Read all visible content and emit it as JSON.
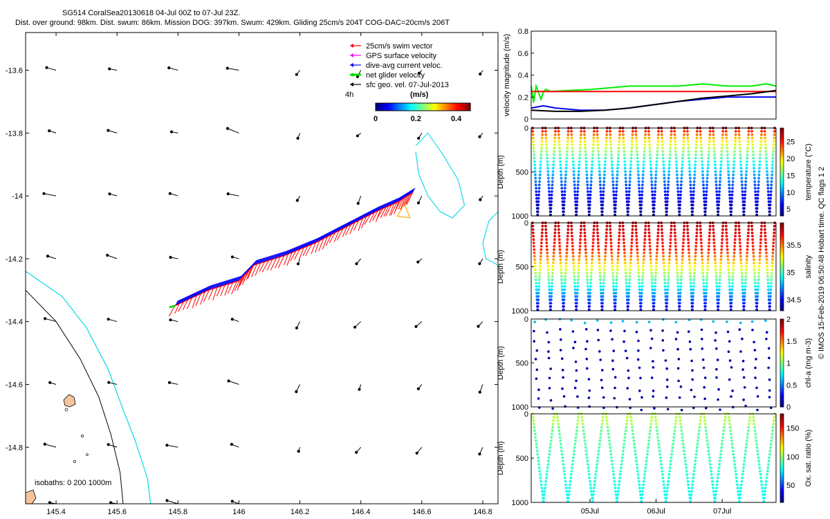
{
  "header": {
    "line1": "SG514 CoralSea20130618 04-Jul 00Z to 07-Jul 23Z.",
    "line2": "Dist. over ground: 98km. Dist. swum: 86km. Mission DOG: 397km. Swum: 429km. Gliding 25cm/s 204T COG-DAC=20cm/s 206T"
  },
  "footer_credit": "© IMOS 15-Feb-2019 06:50:48 Hobart time. QC flags 1  2",
  "colors": {
    "swim": "#ff0000",
    "gps": "#ff00ff",
    "dac": "#0000ff",
    "net": "#00dd00",
    "geo": "#000000",
    "isobath_200": "#00d8e8",
    "isobath_1000": "#000000",
    "land": "#f4c49c"
  },
  "chart_data": [
    {
      "type": "scatter",
      "kind": "map",
      "xlim": [
        145.3,
        146.85
      ],
      "ylim": [
        -14.98,
        -13.48
      ],
      "xticks": [
        145.4,
        145.6,
        145.8,
        146,
        146.2,
        146.4,
        146.6,
        146.8
      ],
      "xtick_labels": [
        "145.4",
        "145.6",
        "145.8",
        "146",
        "146.2",
        "146.4",
        "146.6",
        "146.8"
      ],
      "yticks": [
        -13.6,
        -13.8,
        -14,
        -14.2,
        -14.4,
        -14.6,
        -14.8
      ],
      "ytick_labels": [
        "-13.6",
        "-13.8",
        "-14",
        "-14.2",
        "-14.4",
        "-14.6",
        "-14.8"
      ],
      "legend": {
        "position": "top-right",
        "entries": [
          "25cm/s swim vector",
          "GPS surface velocity",
          "dive-avg current veloc.",
          "net glider velocity",
          "sfc geo. vel. 07-Jul-2013"
        ]
      },
      "time_step_label": "4h",
      "colorbar": {
        "title": "(m/s)",
        "ticks": [
          0,
          0.2,
          0.4
        ],
        "range": [
          0,
          0.47
        ],
        "tick_labels": [
          "0",
          "0.2",
          "0.4"
        ]
      },
      "isobaths_label": "isobaths: 0   200  1000m",
      "track": {
        "start": [
          145.79,
          -14.35
        ],
        "end": [
          146.57,
          -13.99
        ],
        "points": [
          [
            145.79,
            -14.35
          ],
          [
            145.9,
            -14.3
          ],
          [
            146.0,
            -14.27
          ],
          [
            146.05,
            -14.22
          ],
          [
            146.15,
            -14.19
          ],
          [
            146.25,
            -14.15
          ],
          [
            146.35,
            -14.1
          ],
          [
            146.45,
            -14.05
          ],
          [
            146.52,
            -14.02
          ],
          [
            146.57,
            -13.99
          ]
        ]
      },
      "geo_vectors": {
        "lons": [
          145.4,
          145.6,
          145.8,
          146.0,
          146.2,
          146.4,
          146.6,
          146.8
        ],
        "lats": [
          -13.6,
          -13.8,
          -14.0,
          -14.2,
          -14.4,
          -14.6,
          -14.8,
          -14.98
        ]
      }
    },
    {
      "type": "line",
      "ylabel": "velocity magnitude (m/s)",
      "ylim": [
        0,
        0.8
      ],
      "yticks": [
        0,
        0.2,
        0.4,
        0.6,
        0.8
      ],
      "ytick_labels": [
        "0",
        "0.2",
        "0.4",
        "0.6",
        "0.8"
      ],
      "xlim": [
        0,
        1
      ],
      "series": [
        {
          "color": "#00ee00",
          "x": [
            0,
            0.01,
            0.02,
            0.04,
            0.05,
            0.06,
            0.08,
            0.15,
            0.25,
            0.4,
            0.5,
            0.6,
            0.7,
            0.8,
            0.9,
            0.96,
            1.0
          ],
          "y": [
            0.3,
            0.15,
            0.3,
            0.18,
            0.25,
            0.27,
            0.25,
            0.26,
            0.27,
            0.3,
            0.3,
            0.3,
            0.32,
            0.3,
            0.3,
            0.32,
            0.3
          ]
        },
        {
          "color": "#ff0000",
          "x": [
            0,
            1
          ],
          "y": [
            0.25,
            0.25
          ]
        },
        {
          "color": "#0000ee",
          "x": [
            0,
            0.05,
            0.1,
            0.2,
            0.3,
            0.4,
            0.5,
            0.6,
            0.7,
            0.8,
            0.9,
            1.0
          ],
          "y": [
            0.1,
            0.12,
            0.1,
            0.08,
            0.08,
            0.1,
            0.13,
            0.16,
            0.18,
            0.2,
            0.2,
            0.2
          ]
        },
        {
          "color": "#000000",
          "x": [
            0,
            0.1,
            0.2,
            0.3,
            0.4,
            0.5,
            0.6,
            0.7,
            0.8,
            0.9,
            1.0
          ],
          "y": [
            0.08,
            0.07,
            0.07,
            0.08,
            0.1,
            0.13,
            0.16,
            0.19,
            0.21,
            0.23,
            0.26
          ]
        }
      ]
    },
    {
      "type": "scatter",
      "ylabel": "Depth (m)",
      "ylim": [
        1000,
        0
      ],
      "yticks": [
        0,
        500,
        1000
      ],
      "ytick_labels": [
        "0",
        "500",
        "1000"
      ],
      "cbar_label": "temperature (°C)",
      "cbar_ticks": [
        5,
        10,
        15,
        20,
        25
      ],
      "cbar_tick_labels": [
        "5",
        "10",
        "15",
        "20",
        "25"
      ],
      "cbar_range": [
        3,
        29
      ],
      "variable": "temperature",
      "dive_count": 19
    },
    {
      "type": "scatter",
      "ylabel": "Depth (m)",
      "ylim": [
        1000,
        0
      ],
      "yticks": [
        0,
        500,
        1000
      ],
      "ytick_labels": [
        "0",
        "500",
        "1000"
      ],
      "cbar_label": "salinity",
      "cbar_ticks": [
        34.5,
        35,
        35.5
      ],
      "cbar_tick_labels": [
        "34.5",
        "35",
        "35.5"
      ],
      "cbar_range": [
        34.3,
        35.9
      ],
      "variable": "salinity",
      "dive_count": 19
    },
    {
      "type": "scatter",
      "ylabel": "Depth (m)",
      "ylim": [
        1000,
        0
      ],
      "yticks": [
        0,
        500,
        1000
      ],
      "ytick_labels": [
        "0",
        "500",
        "1000"
      ],
      "cbar_label": "chl-a (mg m-3)",
      "cbar_ticks": [
        0,
        0.5,
        1,
        1.5,
        2
      ],
      "cbar_tick_labels": [
        "0",
        "0.5",
        "1",
        "1.5",
        "2"
      ],
      "cbar_range": [
        0,
        2
      ],
      "variable": "chla",
      "dive_count": 19
    },
    {
      "type": "scatter",
      "ylabel": "Depth (m)",
      "ylim": [
        1000,
        0
      ],
      "yticks": [
        0,
        500,
        1000
      ],
      "ytick_labels": [
        "0",
        "500",
        "1000"
      ],
      "cbar_label": "Ox. sat. ratio (%)",
      "cbar_ticks": [
        50,
        100,
        150
      ],
      "cbar_tick_labels": [
        "50",
        "100",
        "150"
      ],
      "cbar_range": [
        20,
        175
      ],
      "variable": "oxygen",
      "dive_count": 10,
      "xlim": [
        0,
        1
      ],
      "xticks": [
        0.24,
        0.51,
        0.78
      ],
      "xtick_labels": [
        "05Jul",
        "06Jul",
        "07Jul"
      ]
    }
  ]
}
